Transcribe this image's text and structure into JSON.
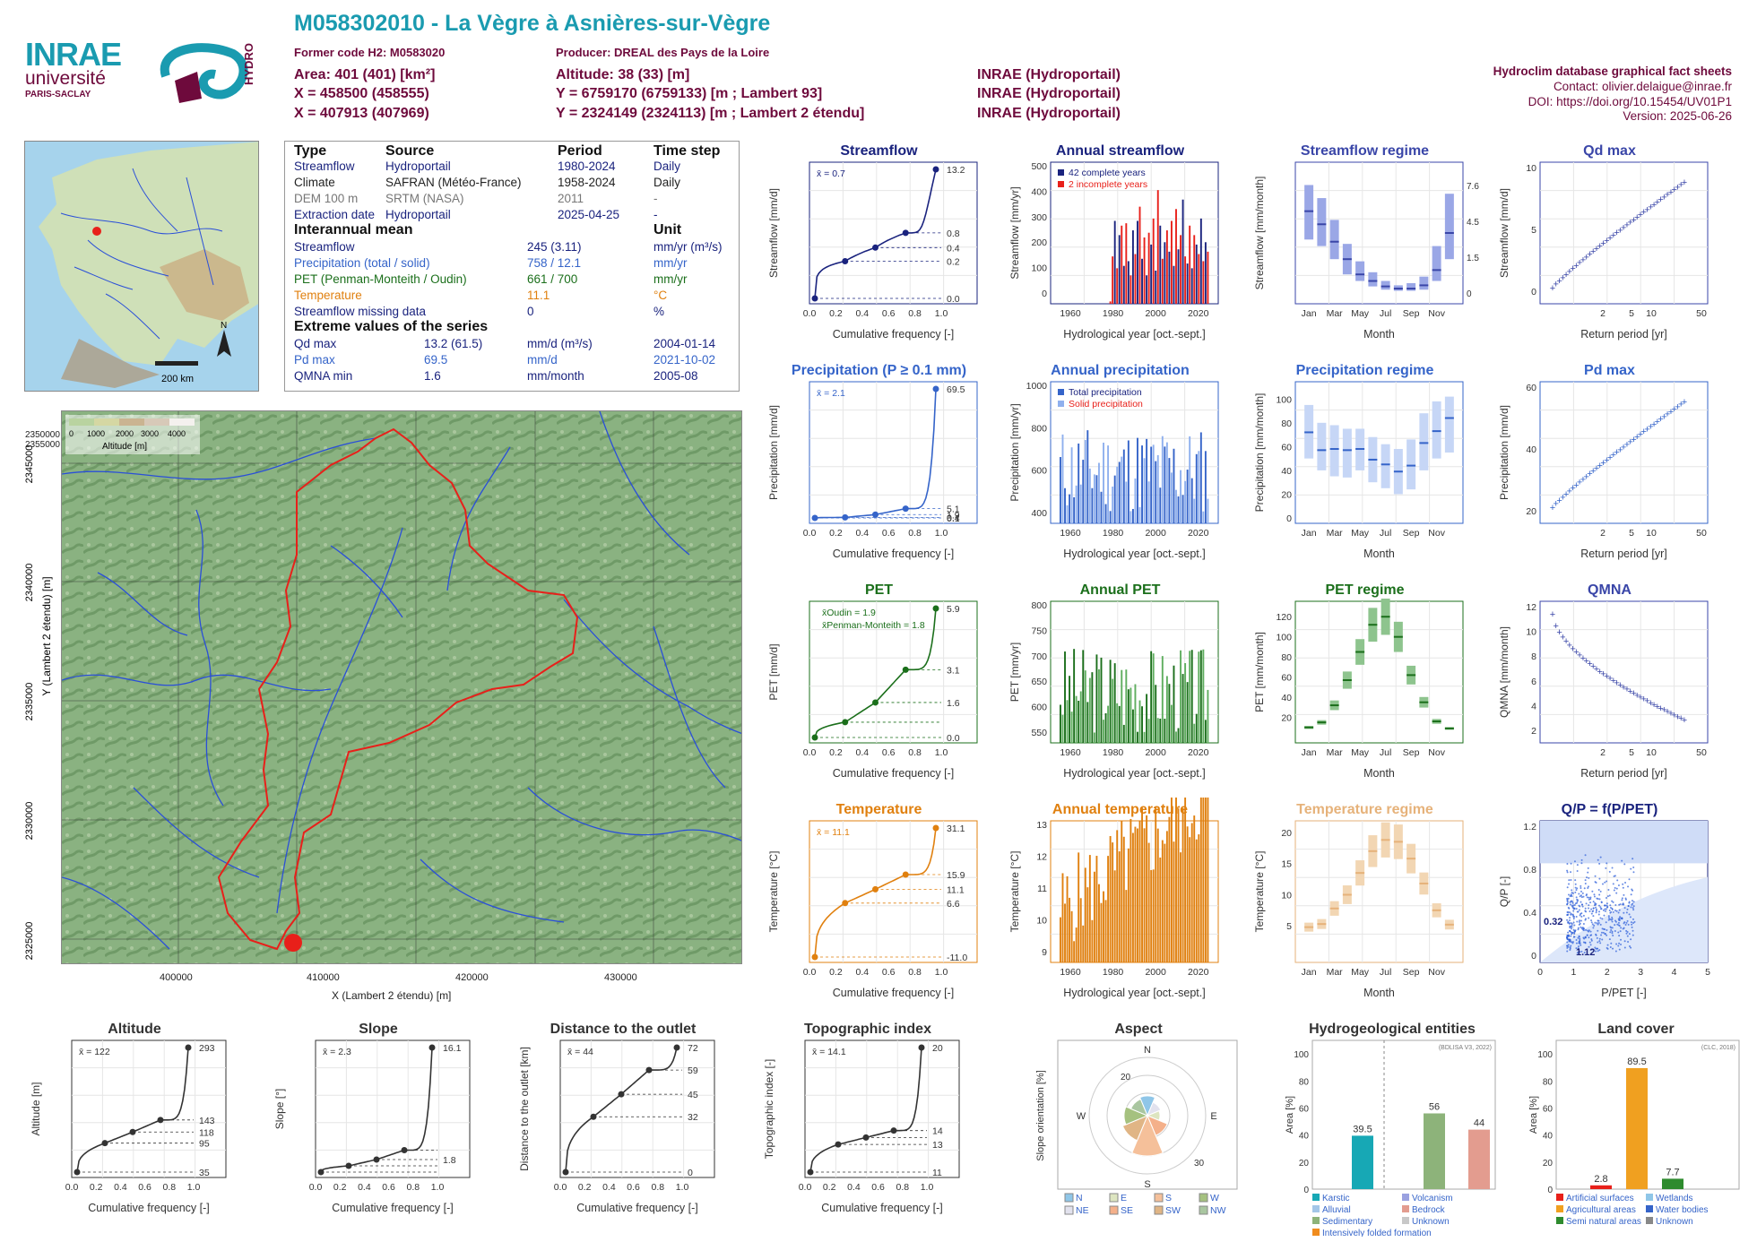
{
  "header": {
    "title": "M058302010 - La Vègre à Asnières-sur-Vègre",
    "former_code": "Former code H2: M0583020",
    "producer": "Producer: DREAL des Pays de la Loire",
    "area": "Area: 401 (401) [km²]",
    "altitude": "Altitude: 38 (33) [m]",
    "x1": "X = 458500 (458555)",
    "y1": "Y = 6759170 (6759133) [m ; Lambert 93]",
    "x2": "X = 407913 (407969)",
    "y2": "Y = 2324149 (2324113) [m ; Lambert 2 étendu]",
    "src1": "INRAE (Hydroportail)",
    "src2": "INRAE (Hydroportail)",
    "src3": "INRAE (Hydroportail)",
    "db_title": "Hydroclim database graphical fact sheets",
    "contact": "Contact: olivier.delaigue@inrae.fr",
    "doi": "DOI: https://doi.org/10.15454/UV01P1",
    "version": "Version: 2025-06-26"
  },
  "logos": {
    "inrae": "INRAE",
    "universite": "université",
    "paris_saclay": "PARIS-SACLAY",
    "hydro": "HYDRO"
  },
  "info": {
    "h_type": "Type",
    "h_source": "Source",
    "h_period": "Period",
    "h_step": "Time step",
    "rows": [
      {
        "type": "Streamflow",
        "source": "Hydroportail",
        "period": "1980-2024",
        "step": "Daily"
      },
      {
        "type": "Climate",
        "source": "SAFRAN (Météo-France)",
        "period": "1958-2024",
        "step": "Daily"
      },
      {
        "type": "DEM 100 m",
        "source": "SRTM (NASA)",
        "period": "2011",
        "step": "-"
      },
      {
        "type": "Extraction date",
        "source": "Hydroportail",
        "period": "2025-04-25",
        "step": "-"
      }
    ],
    "h_mean": "Interannual mean",
    "h_unit": "Unit",
    "means": [
      {
        "label": "Streamflow",
        "value": "245 (3.11)",
        "unit": "mm/yr (m³/s)"
      },
      {
        "label": "Precipitation (total / solid)",
        "value": "758 / 12.1",
        "unit": "mm/yr"
      },
      {
        "label": "PET (Penman-Monteith / Oudin)",
        "value": "661 / 700",
        "unit": "mm/yr"
      },
      {
        "label": "Temperature",
        "value": "11.1",
        "unit": "°C"
      },
      {
        "label": "Streamflow missing data",
        "value": "0",
        "unit": "%"
      }
    ],
    "h_extreme": "Extreme values of the series",
    "extremes": [
      {
        "label": "Qd max",
        "value": "13.2 (61.5)",
        "unit": "mm/d (m³/s)",
        "date": "2004-01-14"
      },
      {
        "label": "Pd max",
        "value": "69.5",
        "unit": "mm/d",
        "date": "2021-10-02"
      },
      {
        "label": "QMNA min",
        "value": "1.6",
        "unit": "mm/month",
        "date": "2005-08"
      }
    ]
  },
  "maps": {
    "scale": "200 km",
    "north": "N",
    "legend_ticks": [
      "0",
      "1000",
      "2000",
      "3000",
      "4000"
    ],
    "legend_title": "Altitude [m]",
    "x_ticks": [
      "400000",
      "410000",
      "420000",
      "430000"
    ],
    "y_ticks": [
      "2325000",
      "2330000",
      "2335000",
      "2340000",
      "2345000",
      "2350000",
      "2355000"
    ],
    "xlabel": "X (Lambert 2 étendu) [m]",
    "ylabel": "Y (Lambert 2 étendu) [m]",
    "basin_color": "#e8201a",
    "river_color": "#2a4fd8"
  },
  "chart_data": [
    {
      "id": "streamflow_dist",
      "type": "line",
      "title": "Streamflow",
      "xlabel": "Cumulative frequency [-]",
      "ylabel": "Streamflow [mm/d]",
      "mean_label": "x̄ = 0.7",
      "y_scale": "log",
      "color": "#1a237e",
      "right_ticks": [
        "13.2",
        "0.8",
        "0.4",
        "0.2",
        "0.0"
      ],
      "x": [
        0,
        0.25,
        0.5,
        0.75,
        1
      ],
      "y": [
        0.0,
        0.2,
        0.4,
        0.8,
        13.2
      ]
    },
    {
      "id": "annual_streamflow",
      "type": "bar",
      "title": "Annual streamflow",
      "xlabel": "Hydrological year [oct.-sept.]",
      "ylabel": "Streamflow [mm/yr]",
      "legend": [
        "42 complete years",
        "2 incomplete years"
      ],
      "colors": [
        "#1a237e",
        "#e8201a"
      ],
      "xlim": [
        1958,
        2024
      ],
      "ylim": [
        0,
        560
      ],
      "x_ticks": [
        "1960",
        "1980",
        "2000",
        "2020"
      ],
      "y_ticks": [
        "0",
        "100",
        "200",
        "300",
        "400",
        "500"
      ],
      "start_year": 1980,
      "values": [
        10,
        200,
        350,
        150,
        290,
        330,
        160,
        340,
        180,
        120,
        310,
        210,
        350,
        410,
        190,
        280,
        120,
        300,
        250,
        360,
        140,
        480,
        330,
        190,
        260,
        310,
        220,
        350,
        160,
        400,
        230,
        290,
        440,
        200,
        170,
        330,
        150,
        290,
        250,
        210,
        360,
        180,
        260,
        220
      ]
    },
    {
      "id": "streamflow_regime",
      "type": "box",
      "title": "Streamflow regime",
      "xlabel": "Month",
      "ylabel": "Streamflow [mm/month]",
      "right_ticks": [
        "7.62",
        "4.57",
        "1.52",
        "0"
      ],
      "categories": [
        "Jan",
        "Feb",
        "Mar",
        "Apr",
        "May",
        "Jun",
        "Jul",
        "Aug",
        "Sep",
        "Oct",
        "Nov",
        "Dec"
      ],
      "x_ticks": [
        "Jan",
        "Mar",
        "May",
        "Jul",
        "Sep",
        "Nov"
      ],
      "median": [
        40,
        34,
        26,
        18,
        11,
        8,
        5.5,
        4.5,
        4.5,
        6,
        13,
        30
      ],
      "q1": [
        27,
        24,
        18,
        11,
        8,
        5.5,
        4,
        3.5,
        3.5,
        4,
        8,
        18
      ],
      "q3": [
        52,
        46,
        36,
        25,
        17,
        12,
        8,
        6,
        7,
        10,
        24,
        48
      ]
    },
    {
      "id": "qd_max",
      "type": "scatter",
      "title": "Qd max",
      "xlabel": "Return period [yr]",
      "ylabel": "Streamflow [mm/d]",
      "x_ticks": [
        "2",
        "5",
        "10",
        "50"
      ],
      "y_ticks": [
        "0",
        "5",
        "10"
      ],
      "color": "#3a46a8"
    },
    {
      "id": "precip_dist",
      "type": "line",
      "title": "Precipitation (P ≥ 0.1 mm)",
      "xlabel": "Cumulative frequency [-]",
      "ylabel": "Precipitation [mm/d]",
      "mean_label": "x̄ = 2.1",
      "color": "#3564c9",
      "right_ticks": [
        "69.5",
        "5.1",
        "1.9",
        "0.4",
        "0.1"
      ],
      "x": [
        0,
        0.25,
        0.5,
        0.75,
        1
      ],
      "y": [
        0.1,
        0.4,
        1.9,
        5.1,
        69.5
      ]
    },
    {
      "id": "annual_precip",
      "type": "bar",
      "title": "Annual precipitation",
      "xlabel": "Hydrological year [oct.-sept.]",
      "ylabel": "Precipitation [mm/yr]",
      "legend": [
        "Total precipitation",
        "Solid precipitation"
      ],
      "colors": [
        "#3564c9",
        "#8fb0ee"
      ],
      "y_ticks": [
        "400",
        "600",
        "800",
        "1000"
      ],
      "x_ticks": [
        "1960",
        "1980",
        "2000",
        "2020"
      ]
    },
    {
      "id": "precip_regime",
      "type": "box",
      "title": "Precipitation regime",
      "xlabel": "Month",
      "ylabel": "Precipitation [mm/month]",
      "y_ticks": [
        "0",
        "20",
        "40",
        "60",
        "80",
        "100"
      ],
      "x_ticks": [
        "Jan",
        "Mar",
        "May",
        "Jul",
        "Sep",
        "Nov"
      ],
      "median": [
        72,
        57,
        58,
        57,
        58,
        49,
        45,
        39,
        44,
        63,
        73,
        84
      ],
      "q1": [
        50,
        40,
        35,
        34,
        40,
        30,
        25,
        20,
        24,
        40,
        50,
        55
      ],
      "q3": [
        95,
        80,
        78,
        75,
        75,
        68,
        62,
        58,
        66,
        88,
        98,
        102
      ]
    },
    {
      "id": "pd_max",
      "type": "scatter",
      "title": "Pd max",
      "xlabel": "Return period [yr]",
      "ylabel": "Precipitation [mm/d]",
      "x_ticks": [
        "2",
        "5",
        "10",
        "50"
      ],
      "y_ticks": [
        "20",
        "40",
        "60"
      ],
      "color": "#3564c9"
    },
    {
      "id": "pet_dist",
      "type": "line",
      "title": "PET",
      "xlabel": "Cumulative frequency [-]",
      "ylabel": "PET [mm/d]",
      "legend": [
        "x̄Oudin = 1.9",
        "x̄Penman-Monteith = 1.8"
      ],
      "color": "#1b6f1b",
      "right_ticks": [
        "5.9",
        "3.1",
        "1.6",
        "0.0"
      ],
      "x": [
        0,
        0.25,
        0.5,
        0.75,
        1
      ],
      "y": [
        0.0,
        0.7,
        1.6,
        3.1,
        5.9
      ]
    },
    {
      "id": "annual_pet",
      "type": "bar",
      "title": "Annual PET",
      "xlabel": "Hydrological year [oct.-sept.]",
      "ylabel": "PET [mm/yr]",
      "colors": [
        "#1b6f1b",
        "#5fae5f"
      ],
      "y_ticks": [
        "550",
        "600",
        "650",
        "700",
        "750",
        "800"
      ],
      "x_ticks": [
        "1960",
        "1980",
        "2000",
        "2020"
      ]
    },
    {
      "id": "pet_regime",
      "type": "box",
      "title": "PET regime",
      "xlabel": "Month",
      "ylabel": "PET [mm/month]",
      "y_ticks": [
        "20",
        "40",
        "60",
        "80",
        "100",
        "120"
      ],
      "x_ticks": [
        "Jan",
        "Mar",
        "May",
        "Jul",
        "Sep",
        "Nov"
      ],
      "median": [
        10,
        15,
        32,
        57,
        85,
        112,
        120,
        100,
        62,
        35,
        16,
        9
      ]
    },
    {
      "id": "qmna",
      "type": "scatter",
      "title": "QMNA",
      "xlabel": "Return period [yr]",
      "ylabel": "QMNA [mm/month]",
      "x_ticks": [
        "2",
        "5",
        "10",
        "50"
      ],
      "y_ticks": [
        "2",
        "4",
        "6",
        "8",
        "10",
        "12"
      ],
      "color": "#3a46a8"
    },
    {
      "id": "temp_dist",
      "type": "line",
      "title": "Temperature",
      "xlabel": "Cumulative frequency [-]",
      "ylabel": "Temperature [°C]",
      "mean_label": "x̄ = 11.1",
      "color": "#e0800f",
      "right_ticks": [
        "31.1",
        "15.9",
        "11.1",
        "6.6",
        "-11.0"
      ],
      "x": [
        0,
        0.25,
        0.5,
        0.75,
        1
      ],
      "y": [
        -11.0,
        6.6,
        11.1,
        15.9,
        31.1
      ]
    },
    {
      "id": "annual_temp",
      "type": "bar",
      "title": "Annual temperature",
      "xlabel": "Hydrological year [oct.-sept.]",
      "ylabel": "Temperature [°C]",
      "colors": [
        "#e0800f"
      ],
      "y_ticks": [
        "9",
        "10",
        "11",
        "12",
        "13"
      ],
      "x_ticks": [
        "1960",
        "1980",
        "2000",
        "2020"
      ]
    },
    {
      "id": "temp_regime",
      "type": "box",
      "title": "Temperature regime",
      "xlabel": "Month",
      "ylabel": "Temperature [°C]",
      "y_ticks": [
        "5",
        "10",
        "15",
        "20"
      ],
      "x_ticks": [
        "Jan",
        "Mar",
        "May",
        "Jul",
        "Sep",
        "Nov"
      ],
      "median": [
        4.8,
        5.3,
        7.8,
        10,
        13.5,
        17,
        18.8,
        18.5,
        15.8,
        11.8,
        7.5,
        5.2
      ]
    },
    {
      "id": "qp_ppet",
      "type": "scatter",
      "title": "Q/P = f(P/PET)",
      "xlabel": "P/PET [-]",
      "ylabel": "Q/P [-]",
      "annotations": [
        "0.32",
        "1.12"
      ],
      "x_ticks": [
        "0",
        "1",
        "2",
        "3",
        "4",
        "5"
      ],
      "y_ticks": [
        "0",
        "0.4",
        "0.8",
        "1.2"
      ]
    },
    {
      "id": "altitude",
      "type": "line",
      "title": "Altitude",
      "xlabel": "Cumulative frequency [-]",
      "ylabel": "Altitude [m]",
      "mean_label": "x̄ = 122",
      "right_ticks": [
        "293",
        "143",
        "118",
        "95",
        "35"
      ],
      "x": [
        0,
        0.25,
        0.5,
        0.75,
        1
      ],
      "y": [
        35,
        95,
        118,
        143,
        293
      ]
    },
    {
      "id": "slope",
      "type": "line",
      "title": "Slope",
      "xlabel": "Cumulative frequency [-]",
      "ylabel": "Slope [°]",
      "mean_label": "x̄ = 2.3",
      "right_ticks": [
        "16.1",
        "1.8"
      ],
      "x": [
        0,
        0.25,
        0.5,
        0.75,
        1
      ],
      "y": [
        0.2,
        1.0,
        1.8,
        3.0,
        16.1
      ]
    },
    {
      "id": "distance",
      "type": "line",
      "title": "Distance to the outlet",
      "xlabel": "Cumulative frequency [-]",
      "ylabel": "Distance to the outlet [km]",
      "mean_label": "x̄ = 44",
      "right_ticks": [
        "72",
        "59",
        "45",
        "32",
        "0"
      ],
      "x": [
        0,
        0.25,
        0.5,
        0.75,
        1
      ],
      "y": [
        0,
        32,
        45,
        59,
        72
      ]
    },
    {
      "id": "topo_index",
      "type": "line",
      "title": "Topographic index",
      "xlabel": "Cumulative frequency [-]",
      "ylabel": "Topographic index [-]",
      "mean_label": "x̄ = 14.1",
      "right_ticks": [
        "20",
        "14",
        "13",
        "11"
      ],
      "x": [
        0,
        0.25,
        0.5,
        0.75,
        1
      ],
      "y": [
        11,
        13,
        13.5,
        14,
        20
      ]
    },
    {
      "id": "aspect",
      "type": "pie",
      "title": "Aspect",
      "ylabel": "Slope orientation [%]",
      "dirs": [
        "N",
        "NE",
        "E",
        "SE",
        "S",
        "SW",
        "W",
        "NW"
      ],
      "rings": [
        "20",
        "30"
      ],
      "legend": [
        "N",
        "E",
        "S",
        "W",
        "NE",
        "SE",
        "SW",
        "NW"
      ]
    },
    {
      "id": "hydrogeol",
      "type": "bar",
      "title": "Hydrogeological entities",
      "ylabel": "Area [%]",
      "source": "(BDLISA V3, 2022)",
      "values": [
        39.5,
        56,
        44
      ],
      "colors": [
        "#17a8b5",
        "#8db37a",
        "#e39c8f"
      ],
      "y_ticks": [
        "0",
        "20",
        "40",
        "60",
        "80",
        "100"
      ],
      "legend": [
        "Karstic",
        "Volcanism",
        "Alluvial",
        "Bedrock",
        "Sedimentary",
        "Unknown",
        "Intensively folded formation"
      ]
    },
    {
      "id": "landcover",
      "type": "bar",
      "title": "Land cover",
      "ylabel": "Area [%]",
      "source": "(CLC, 2018)",
      "values": [
        2.8,
        89.5,
        7.7
      ],
      "colors": [
        "#e8201a",
        "#f0a020",
        "#2e8b2e"
      ],
      "y_ticks": [
        "0",
        "20",
        "40",
        "60",
        "80",
        "100"
      ],
      "legend": [
        "Artificial surfaces",
        "Wetlands",
        "Agricultural areas",
        "Water bodies",
        "Semi natural areas",
        "Unknown"
      ]
    }
  ]
}
